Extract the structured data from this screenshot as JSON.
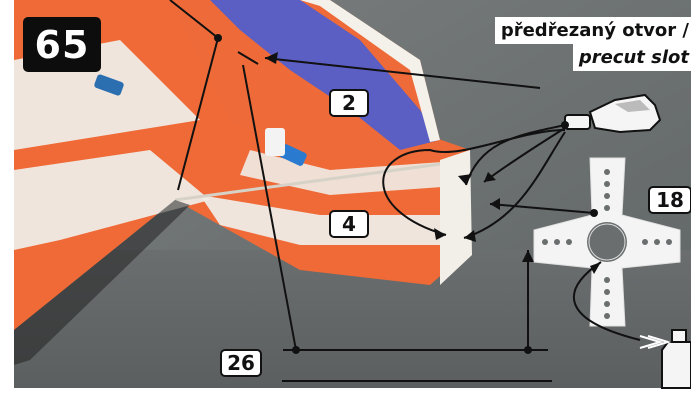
{
  "step_number": "65",
  "caption": {
    "czech": "předřezaný otvor /",
    "english": "precut slot"
  },
  "labels": {
    "label_2": "2",
    "label_4": "4",
    "label_18": "18",
    "label_26": "26"
  },
  "colors": {
    "foam_orange": "#f26b3a",
    "foam_white": "#efece6",
    "decal_blue": "#5b5fc4",
    "background_grey": "#6f7373",
    "annotation_line": "#111111"
  },
  "icons": [
    "glue-bottle-icon",
    "servo-horn-icon",
    "arrow-icon"
  ]
}
